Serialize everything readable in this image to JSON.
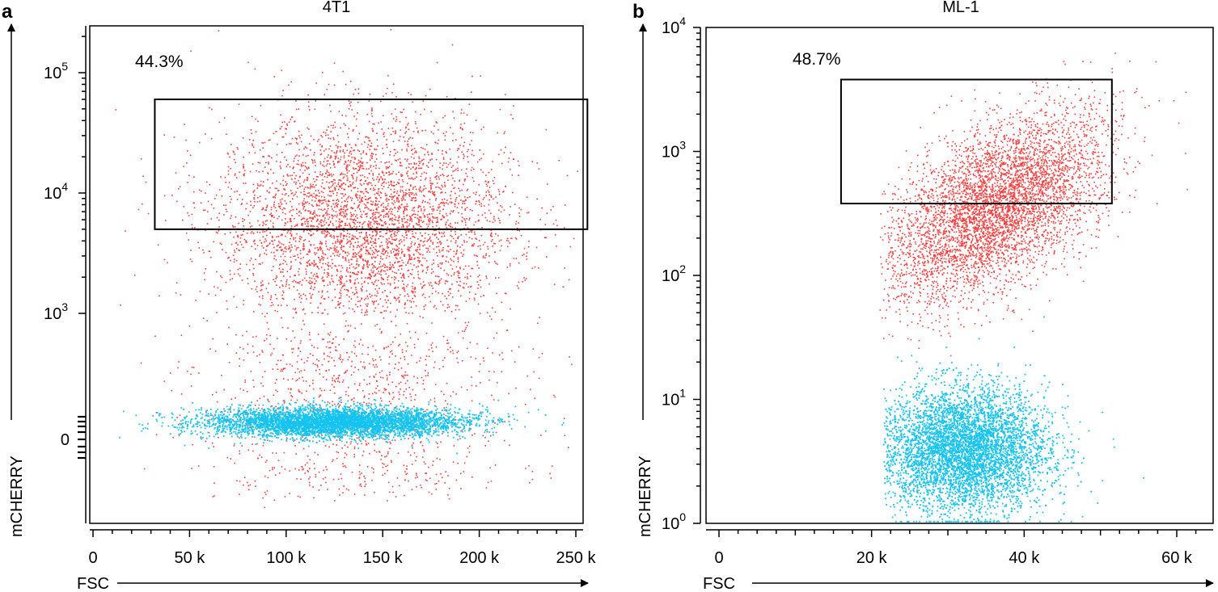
{
  "colors": {
    "positive": "#ff3b3b",
    "negative": "#14c3f0",
    "axis": "#000000"
  },
  "chart_data": [
    {
      "type": "scatter",
      "panel_label": "a",
      "title": "4T1",
      "xlabel": "FSC",
      "ylabel": "mCHERRY",
      "x_scale": "linear",
      "y_scale": "biexponential",
      "xlim": [
        0,
        262000
      ],
      "x_ticks": [
        {
          "value": 0,
          "label": "0"
        },
        {
          "value": 50000,
          "label": "50 k"
        },
        {
          "value": 100000,
          "label": "100 k"
        },
        {
          "value": 150000,
          "label": "150 k"
        },
        {
          "value": 200000,
          "label": "200 k"
        },
        {
          "value": 250000,
          "label": "250 k"
        }
      ],
      "y_ticks": [
        {
          "value": 0,
          "base": "",
          "exp": "",
          "label": "0"
        },
        {
          "value": 1000,
          "base": "10",
          "exp": "3"
        },
        {
          "value": 10000,
          "base": "10",
          "exp": "4"
        },
        {
          "value": 100000,
          "base": "10",
          "exp": "5"
        }
      ],
      "gate": {
        "x_min": 32000,
        "x_max": 256000,
        "y_min": 5000,
        "y_max": 60000,
        "label": "44.3%"
      },
      "series": [
        {
          "population": "mCHERRY-positive",
          "color": "#ff3b3b"
        },
        {
          "population": "mCHERRY-negative",
          "color": "#14c3f0"
        }
      ]
    },
    {
      "type": "scatter",
      "panel_label": "b",
      "title": "ML-1",
      "xlabel": "FSC",
      "ylabel": "mCHERRY",
      "x_scale": "linear",
      "y_scale": "log",
      "xlim": [
        0,
        66000
      ],
      "ylim": [
        1,
        10000
      ],
      "x_ticks": [
        {
          "value": 0,
          "label": "0"
        },
        {
          "value": 20000,
          "label": "20 k"
        },
        {
          "value": 40000,
          "label": "40 k"
        },
        {
          "value": 60000,
          "label": "60 k"
        }
      ],
      "y_ticks": [
        {
          "value": 1,
          "base": "10",
          "exp": "0"
        },
        {
          "value": 10,
          "base": "10",
          "exp": "1"
        },
        {
          "value": 100,
          "base": "10",
          "exp": "2"
        },
        {
          "value": 1000,
          "base": "10",
          "exp": "3"
        },
        {
          "value": 10000,
          "base": "10",
          "exp": "4"
        }
      ],
      "gate": {
        "x_min": 16000,
        "x_max": 51500,
        "y_min": 380,
        "y_max": 3800,
        "label": "48.7%"
      },
      "series": [
        {
          "population": "mCHERRY-positive",
          "color": "#ff3b3b"
        },
        {
          "population": "mCHERRY-negative",
          "color": "#14c3f0"
        }
      ]
    }
  ]
}
